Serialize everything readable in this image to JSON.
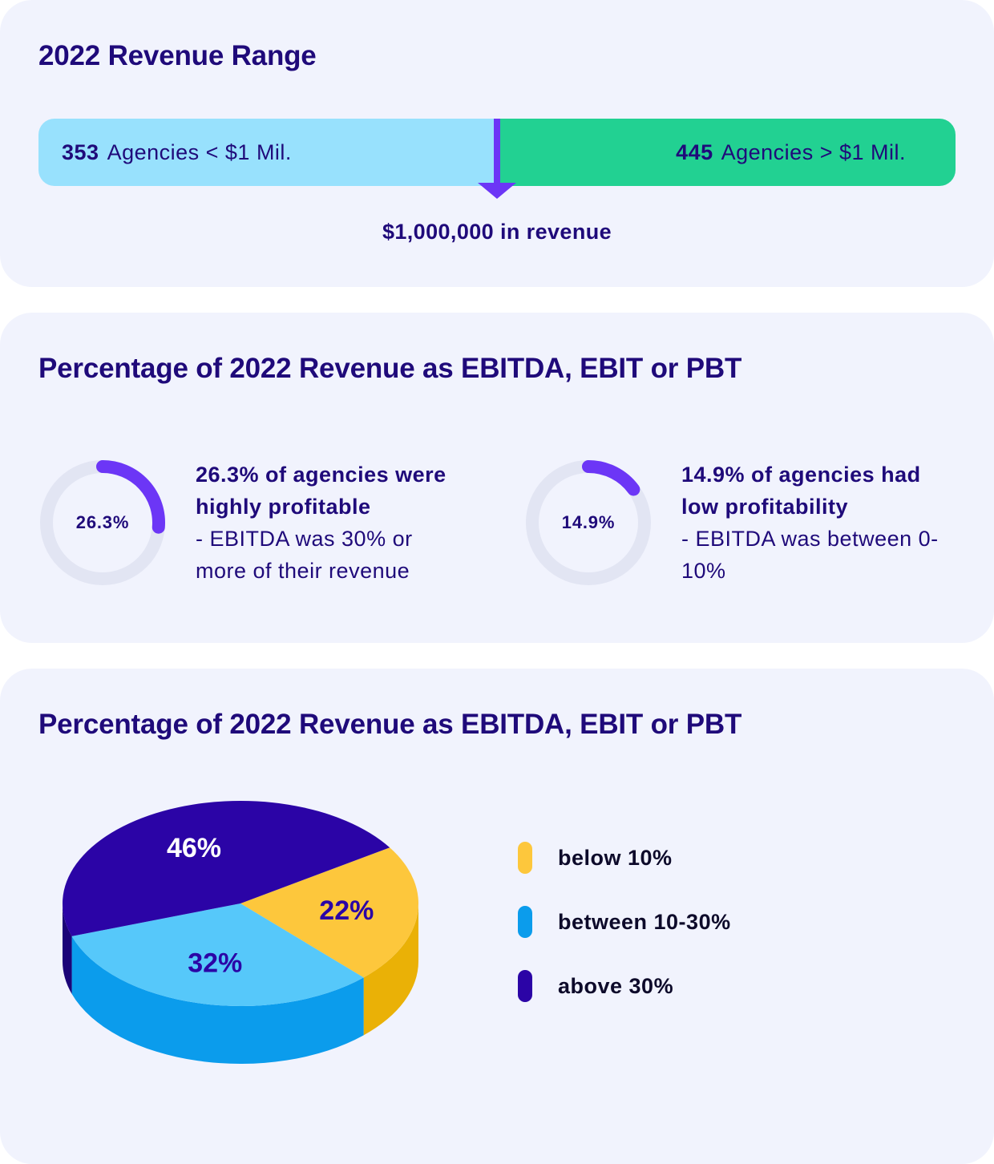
{
  "revenue_range": {
    "title": "2022 Revenue Range",
    "left": {
      "count": "353",
      "text": "Agencies < $1 Mil.",
      "color": "#98e1fd"
    },
    "right": {
      "count": "445",
      "text": "Agencies > $1 Mil.",
      "color": "#22d192"
    },
    "threshold_label": "$1,000,000 in revenue",
    "marker_color": "#6c36f6"
  },
  "profitability": {
    "title": "Percentage of 2022 Revenue as EBITDA, EBIT or PBT",
    "stats": [
      {
        "value": 26.3,
        "value_label": "26.3%",
        "headline": "26.3% of agencies were highly profitable",
        "description": "- EBITDA was 30% or more of their revenue"
      },
      {
        "value": 14.9,
        "value_label": "14.9%",
        "headline": "14.9% of agencies had low profitability",
        "description": "- EBITDA was between 0-10%"
      }
    ],
    "ring_color": "#6c36f6",
    "track_color": "#e2e5f3"
  },
  "distribution": {
    "title": "Percentage of 2022 Revenue as EBITDA, EBIT or PBT",
    "legend": [
      {
        "label": "below 10%",
        "color": "#fdc73c"
      },
      {
        "label": "between 10-30%",
        "color": "#0b9cec"
      },
      {
        "label": "above 30%",
        "color": "#2b04a6"
      }
    ]
  },
  "chart_data": {
    "type": "pie",
    "title": "Percentage of 2022 Revenue as EBITDA, EBIT or PBT",
    "categories": [
      "below 10%",
      "between 10-30%",
      "above 30%"
    ],
    "values": [
      22,
      32,
      46
    ],
    "labels": [
      "22%",
      "32%",
      "46%"
    ],
    "colors": [
      "#fdc73c",
      "#56c8fa",
      "#2b04a6"
    ],
    "side_colors": [
      "#eab106",
      "#0b9cec",
      "#1b0478"
    ],
    "legend_position": "right",
    "style": "3d"
  }
}
